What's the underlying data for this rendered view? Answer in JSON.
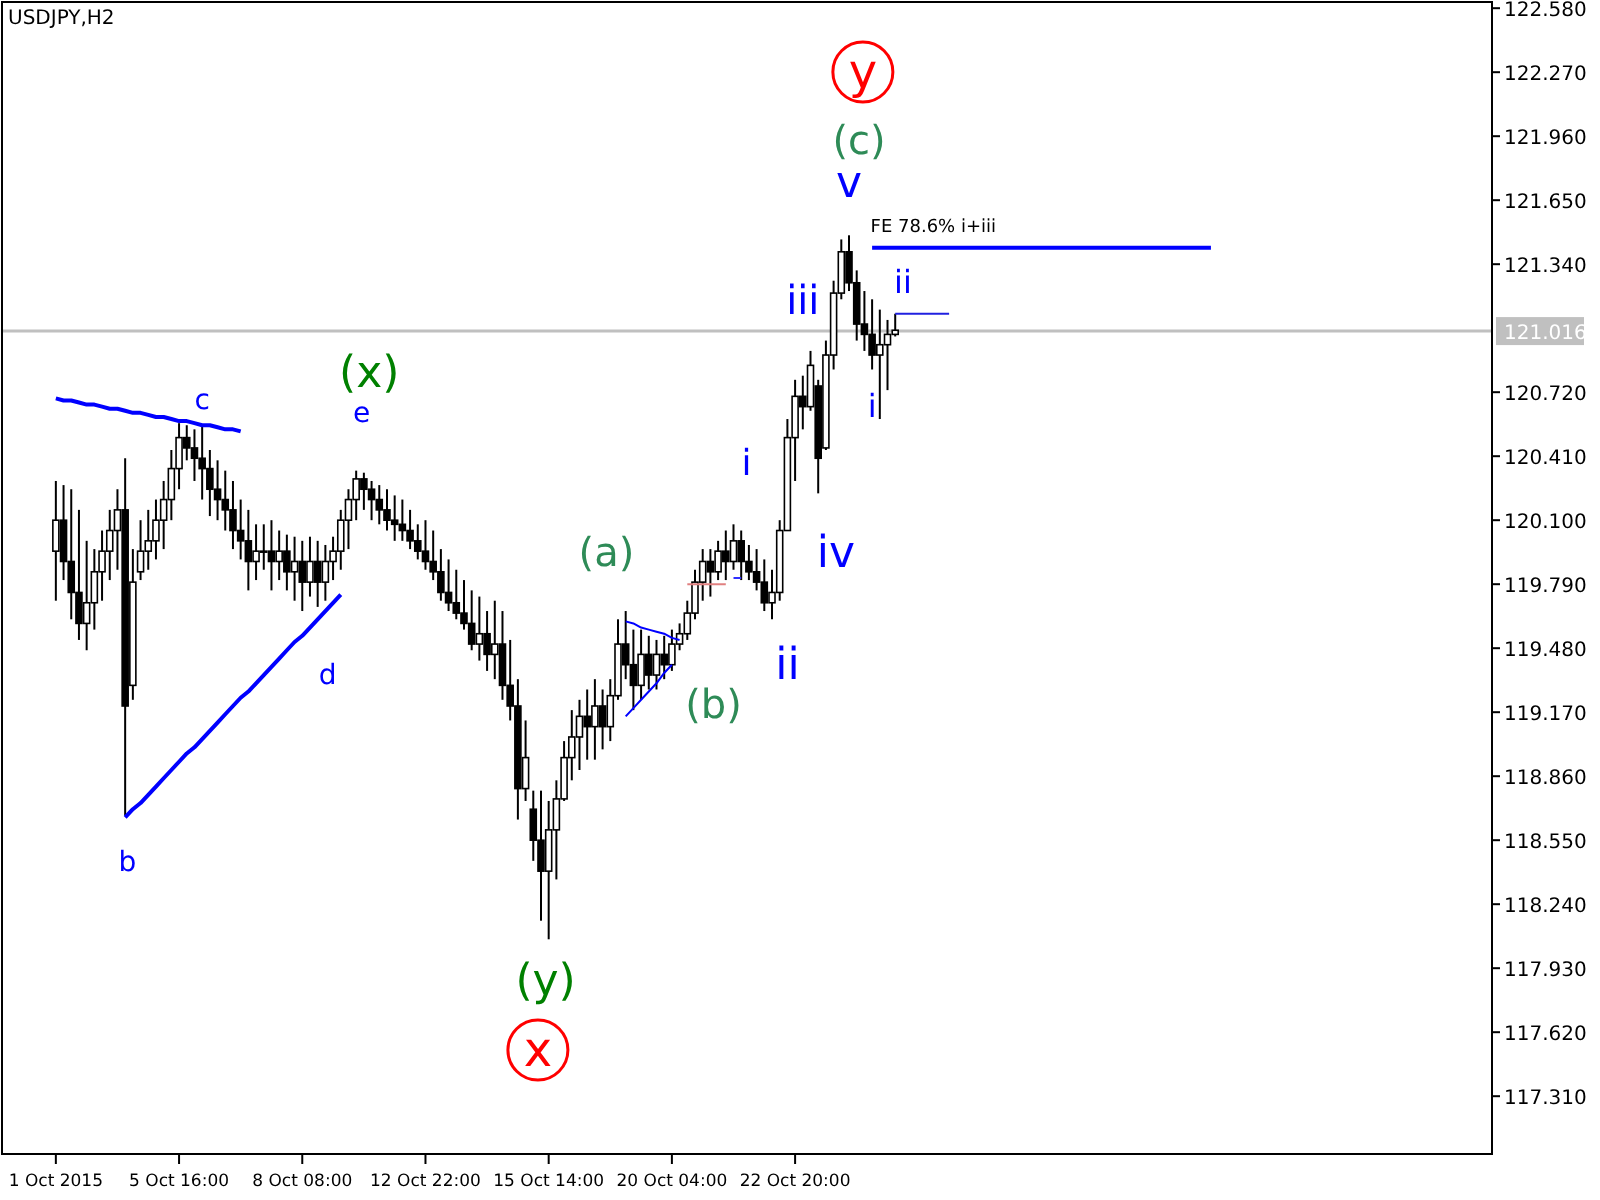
{
  "chart_data": {
    "type": "candlestick",
    "title": "USDJPY,H2",
    "color": "#000000",
    "categories": [
      "1 Oct 2015",
      null,
      null,
      null,
      null,
      null,
      null,
      null,
      null,
      null,
      null,
      null,
      null,
      null,
      null,
      null,
      "5 Oct 16:00",
      null,
      null,
      null,
      null,
      null,
      null,
      null,
      null,
      null,
      null,
      null,
      null,
      null,
      null,
      null,
      "8 Oct 08:00",
      null,
      null,
      null,
      null,
      null,
      null,
      null,
      null,
      null,
      null,
      null,
      null,
      null,
      null,
      null,
      "12 Oct 22:00",
      null,
      null,
      null,
      null,
      null,
      null,
      null,
      null,
      null,
      null,
      null,
      null,
      null,
      null,
      null,
      "15 Oct 14:00",
      null,
      null,
      null,
      null,
      null,
      null,
      null,
      null,
      null,
      null,
      null,
      null,
      null,
      null,
      null,
      "20 Oct 04:00",
      null,
      null,
      null,
      null,
      null,
      null,
      null,
      null,
      null,
      null,
      null,
      null,
      null,
      null,
      null,
      "22 Oct 20:00",
      null,
      null,
      null,
      null,
      null,
      null,
      null,
      null,
      null,
      null,
      null,
      null,
      null,
      null,
      null,
      null,
      null,
      null,
      null,
      null,
      null,
      null,
      null,
      null,
      null,
      null,
      null,
      null,
      null,
      null,
      null,
      null,
      null,
      null,
      null,
      null,
      null,
      null,
      null,
      null,
      null,
      null,
      null,
      null,
      null,
      null,
      null,
      null,
      null,
      null,
      null,
      null,
      null,
      null,
      null,
      null,
      null,
      null,
      null,
      null,
      null,
      null,
      null,
      null,
      null,
      null,
      null,
      null,
      null,
      null,
      null,
      null,
      null,
      null,
      null,
      null,
      null,
      null,
      null,
      null,
      null,
      null,
      null,
      null,
      null,
      null,
      null,
      null,
      null,
      null
    ],
    "ohlc": [
      [
        119.95,
        120.29,
        119.71,
        120.1
      ],
      [
        120.1,
        120.27,
        119.81,
        119.9
      ],
      [
        119.9,
        120.25,
        119.62,
        119.75
      ],
      [
        119.75,
        120.15,
        119.52,
        119.6
      ],
      [
        119.6,
        120.0,
        119.47,
        119.7
      ],
      [
        119.7,
        119.96,
        119.57,
        119.85
      ],
      [
        119.85,
        120.05,
        119.71,
        119.95
      ],
      [
        119.95,
        120.15,
        119.81,
        120.05
      ],
      [
        120.05,
        120.25,
        119.86,
        120.15
      ],
      [
        120.15,
        120.4,
        118.67,
        119.2
      ],
      [
        119.3,
        119.96,
        119.23,
        119.8
      ],
      [
        119.85,
        120.1,
        119.81,
        119.95
      ],
      [
        119.95,
        120.15,
        119.86,
        120.0
      ],
      [
        120.0,
        120.2,
        119.91,
        120.1
      ],
      [
        120.1,
        120.29,
        119.96,
        120.2
      ],
      [
        120.2,
        120.44,
        120.1,
        120.35
      ],
      [
        120.35,
        120.57,
        120.25,
        120.5
      ],
      [
        120.5,
        120.56,
        120.39,
        120.45
      ],
      [
        120.45,
        120.54,
        120.29,
        120.4
      ],
      [
        120.4,
        120.56,
        120.2,
        120.35
      ],
      [
        120.35,
        120.44,
        120.12,
        120.25
      ],
      [
        120.25,
        120.39,
        120.1,
        120.2
      ],
      [
        120.2,
        120.34,
        120.05,
        120.15
      ],
      [
        120.15,
        120.29,
        119.96,
        120.05
      ],
      [
        120.05,
        120.2,
        119.91,
        120.0
      ],
      [
        120.0,
        120.15,
        119.76,
        119.9
      ],
      [
        119.9,
        120.08,
        119.81,
        119.95
      ],
      [
        119.95,
        120.08,
        119.86,
        119.95
      ],
      [
        119.95,
        120.1,
        119.76,
        119.9
      ],
      [
        119.9,
        120.05,
        119.81,
        119.95
      ],
      [
        119.95,
        120.03,
        119.76,
        119.85
      ],
      [
        119.85,
        120.02,
        119.71,
        119.9
      ],
      [
        119.9,
        120.0,
        119.66,
        119.8
      ],
      [
        119.8,
        120.02,
        119.73,
        119.9
      ],
      [
        119.9,
        120.0,
        119.68,
        119.8
      ],
      [
        119.8,
        119.98,
        119.71,
        119.9
      ],
      [
        119.9,
        120.02,
        119.81,
        119.95
      ],
      [
        119.95,
        120.15,
        119.86,
        120.1
      ],
      [
        120.1,
        120.25,
        119.96,
        120.2
      ],
      [
        120.2,
        120.34,
        120.1,
        120.3
      ],
      [
        120.3,
        120.33,
        120.15,
        120.25
      ],
      [
        120.25,
        120.29,
        120.1,
        120.2
      ],
      [
        120.2,
        120.27,
        120.08,
        120.15
      ],
      [
        120.15,
        120.25,
        120.05,
        120.1
      ],
      [
        120.1,
        120.22,
        120.0,
        120.08
      ],
      [
        120.08,
        120.2,
        120.0,
        120.05
      ],
      [
        120.05,
        120.15,
        119.96,
        120.0
      ],
      [
        120.0,
        120.08,
        119.91,
        119.95
      ],
      [
        119.95,
        120.1,
        119.86,
        119.9
      ],
      [
        119.9,
        120.05,
        119.81,
        119.85
      ],
      [
        119.85,
        119.96,
        119.71,
        119.75
      ],
      [
        119.75,
        119.91,
        119.66,
        119.7
      ],
      [
        119.7,
        119.86,
        119.62,
        119.65
      ],
      [
        119.65,
        119.81,
        119.57,
        119.6
      ],
      [
        119.6,
        119.76,
        119.47,
        119.5
      ],
      [
        119.5,
        119.73,
        119.42,
        119.55
      ],
      [
        119.55,
        119.66,
        119.37,
        119.45
      ],
      [
        119.45,
        119.71,
        119.33,
        119.5
      ],
      [
        119.5,
        119.66,
        119.23,
        119.3
      ],
      [
        119.3,
        119.52,
        119.13,
        119.2
      ],
      [
        119.2,
        119.33,
        118.65,
        118.8
      ],
      [
        118.8,
        119.13,
        118.74,
        118.95
      ],
      [
        118.7,
        118.79,
        118.45,
        118.55
      ],
      [
        118.55,
        118.79,
        118.16,
        118.4
      ],
      [
        118.4,
        118.74,
        118.07,
        118.6
      ],
      [
        118.6,
        118.84,
        118.36,
        118.75
      ],
      [
        118.75,
        119.03,
        118.74,
        118.95
      ],
      [
        118.95,
        119.18,
        118.84,
        119.05
      ],
      [
        119.05,
        119.23,
        118.89,
        119.15
      ],
      [
        119.15,
        119.28,
        118.94,
        119.1
      ],
      [
        119.1,
        119.33,
        118.94,
        119.2
      ],
      [
        119.2,
        119.28,
        118.99,
        119.1
      ],
      [
        119.1,
        119.33,
        119.03,
        119.25
      ],
      [
        119.25,
        119.62,
        119.23,
        119.5
      ],
      [
        119.5,
        119.66,
        119.33,
        119.4
      ],
      [
        119.4,
        119.57,
        119.18,
        119.3
      ],
      [
        119.3,
        119.57,
        119.23,
        119.45
      ],
      [
        119.45,
        119.54,
        119.28,
        119.35
      ],
      [
        119.35,
        119.52,
        119.28,
        119.45
      ],
      [
        119.45,
        119.54,
        119.33,
        119.4
      ],
      [
        119.4,
        119.57,
        119.37,
        119.5
      ],
      [
        119.5,
        119.6,
        119.47,
        119.55
      ],
      [
        119.55,
        119.71,
        119.52,
        119.65
      ],
      [
        119.65,
        119.86,
        119.62,
        119.8
      ],
      [
        119.8,
        119.96,
        119.71,
        119.9
      ],
      [
        119.9,
        119.96,
        119.73,
        119.85
      ],
      [
        119.85,
        120.0,
        119.81,
        119.95
      ],
      [
        119.95,
        120.05,
        119.81,
        119.9
      ],
      [
        119.9,
        120.08,
        119.86,
        120.0
      ],
      [
        120.0,
        120.05,
        119.81,
        119.9
      ],
      [
        119.9,
        119.98,
        119.81,
        119.85
      ],
      [
        119.85,
        119.96,
        119.76,
        119.8
      ],
      [
        119.8,
        119.91,
        119.66,
        119.7
      ],
      [
        119.7,
        119.86,
        119.62,
        119.75
      ],
      [
        119.75,
        120.1,
        119.71,
        120.05
      ],
      [
        120.05,
        120.59,
        120.05,
        120.5
      ],
      [
        120.5,
        120.78,
        120.29,
        120.7
      ],
      [
        120.7,
        120.8,
        120.54,
        120.65
      ],
      [
        120.65,
        120.92,
        120.63,
        120.85
      ],
      [
        120.75,
        120.78,
        120.23,
        120.4
      ],
      [
        120.45,
        120.97,
        120.44,
        120.9
      ],
      [
        120.9,
        121.26,
        120.83,
        121.2
      ],
      [
        121.2,
        121.46,
        121.17,
        121.4
      ],
      [
        121.4,
        121.48,
        121.21,
        121.25
      ],
      [
        121.25,
        121.31,
        120.97,
        121.05
      ],
      [
        121.05,
        121.21,
        120.92,
        121.0
      ],
      [
        121.0,
        121.17,
        120.83,
        120.9
      ],
      [
        120.9,
        121.12,
        120.59,
        120.95
      ],
      [
        120.95,
        121.07,
        120.73,
        121.0
      ],
      [
        121.0,
        121.1,
        120.99,
        121.02
      ],
      null,
      null,
      null,
      null,
      null,
      null,
      null,
      null,
      null,
      null,
      null,
      null,
      null,
      null,
      null,
      null,
      null,
      null,
      null,
      null,
      null,
      null,
      null,
      null,
      null,
      null,
      null,
      null,
      null,
      null,
      null,
      null,
      null,
      null,
      null,
      null,
      null,
      null,
      null,
      null,
      null,
      null,
      null,
      null,
      null,
      null,
      null,
      null,
      null,
      null,
      null,
      null,
      null,
      null,
      null,
      null,
      null,
      null,
      null,
      null,
      null,
      null,
      null,
      null,
      null,
      null,
      null,
      null,
      null,
      null,
      null,
      null,
      null,
      null,
      null,
      null,
      null
    ],
    "series": [
      {
        "type": "line",
        "color": "#0000ff",
        "values": [
          120.69,
          120.68,
          120.68,
          120.67,
          120.66,
          120.66,
          120.65,
          120.64,
          120.64,
          120.63,
          120.62,
          120.62,
          120.61,
          120.6,
          120.6,
          120.59,
          120.58,
          120.58,
          120.57,
          120.56,
          120.56,
          120.55,
          120.54,
          120.54,
          120.53,
          null,
          null,
          null,
          null,
          null,
          null,
          null,
          null,
          null,
          null,
          null,
          null,
          null,
          null,
          null,
          null,
          null,
          null,
          null,
          null,
          null,
          null,
          null,
          null,
          null,
          null,
          null,
          null,
          null,
          null,
          null,
          null,
          null,
          null,
          null,
          null,
          null,
          null,
          null,
          null,
          null,
          null,
          null,
          null,
          null,
          null,
          null,
          null,
          null,
          null,
          null,
          null,
          null,
          null,
          null,
          null,
          null,
          null,
          null,
          null,
          null,
          null,
          null,
          null,
          null,
          null,
          null,
          null,
          null,
          null,
          null,
          null,
          null,
          null,
          null,
          null,
          null,
          null,
          null,
          null,
          null,
          null,
          null,
          null,
          null,
          null,
          null,
          null,
          null,
          null,
          null,
          null,
          null,
          null,
          null,
          null,
          null,
          null,
          null,
          null,
          null,
          null,
          null,
          null,
          null,
          null,
          null,
          null,
          null,
          null,
          null,
          null,
          null,
          null,
          null,
          null,
          null,
          null,
          null,
          null,
          null,
          null,
          null,
          null,
          null,
          null,
          null,
          null,
          null,
          null,
          null,
          null,
          null,
          null,
          null,
          null,
          null,
          null,
          null,
          null,
          null,
          null,
          null,
          null,
          null,
          null,
          null,
          null,
          null,
          null,
          null,
          null,
          null,
          null,
          null,
          null,
          null,
          null,
          null,
          null,
          null,
          null
        ]
      },
      {
        "type": "line",
        "color": "#0000ff",
        "values": [
          null,
          null,
          null,
          null,
          null,
          null,
          null,
          null,
          null,
          118.66,
          118.7,
          118.73,
          118.77,
          118.81,
          118.85,
          118.89,
          118.93,
          118.97,
          119.0,
          119.04,
          119.08,
          119.12,
          119.16,
          119.2,
          119.24,
          119.27,
          119.31,
          119.35,
          119.39,
          119.43,
          119.47,
          119.51,
          119.54,
          119.58,
          119.62,
          119.66,
          119.7,
          119.74,
          null,
          null,
          null,
          null,
          null,
          null,
          null,
          null,
          null,
          null,
          null,
          null,
          null,
          null,
          null,
          null,
          null,
          null,
          null,
          null,
          null,
          null,
          null,
          null,
          null,
          null,
          null,
          null,
          null,
          null,
          null,
          null,
          null,
          null,
          null,
          null,
          null,
          null,
          null,
          null,
          null,
          null,
          null,
          null,
          null,
          null,
          null,
          null,
          null,
          null,
          null,
          null,
          null,
          null,
          null,
          null,
          null,
          null,
          null,
          null,
          null,
          null,
          null,
          null,
          null,
          null,
          null,
          null,
          null,
          null,
          null,
          null,
          null,
          null,
          null,
          null,
          null,
          null,
          null,
          null,
          null,
          null,
          null,
          null,
          null,
          null,
          null,
          null,
          null,
          null,
          null,
          null,
          null,
          null,
          null,
          null,
          null,
          null,
          null,
          null,
          null,
          null,
          null,
          null,
          null,
          null,
          null,
          null,
          null,
          null,
          null,
          null,
          null,
          null,
          null,
          null,
          null,
          null,
          null,
          null,
          null,
          null,
          null,
          null,
          null,
          null,
          null,
          null,
          null,
          null,
          null,
          null,
          null,
          null,
          null,
          null,
          null,
          null,
          null,
          null,
          null,
          null,
          null,
          null,
          null,
          null,
          null,
          null,
          null
        ]
      },
      {
        "type": "line",
        "color": "#0000ff",
        "values": [
          null,
          null,
          null,
          null,
          null,
          null,
          null,
          null,
          null,
          null,
          null,
          null,
          null,
          null,
          null,
          null,
          null,
          null,
          null,
          null,
          null,
          null,
          null,
          null,
          null,
          null,
          null,
          null,
          null,
          null,
          null,
          null,
          null,
          null,
          null,
          null,
          null,
          null,
          null,
          null,
          null,
          null,
          null,
          null,
          null,
          null,
          null,
          null,
          null,
          null,
          null,
          null,
          null,
          null,
          null,
          null,
          null,
          null,
          null,
          null,
          null,
          null,
          null,
          null,
          null,
          null,
          null,
          null,
          null,
          null,
          null,
          null,
          null,
          null,
          119.61,
          119.6,
          119.58,
          119.57,
          119.56,
          119.55,
          119.53,
          119.52,
          null,
          null,
          null,
          null,
          null,
          null,
          null,
          null,
          null,
          null,
          null,
          null,
          null,
          null,
          null,
          null,
          null,
          null,
          null,
          null,
          null,
          null,
          null,
          null,
          null,
          null,
          null,
          null,
          null,
          null,
          null,
          null,
          null,
          null,
          null,
          null,
          null,
          null,
          null,
          null,
          null,
          null,
          null,
          null,
          null,
          null,
          null,
          null,
          null,
          null,
          null,
          null,
          null,
          null,
          null,
          null,
          null,
          null,
          null,
          null,
          null,
          null,
          null,
          null,
          null,
          null,
          null,
          null,
          null,
          null,
          null,
          null,
          null,
          null,
          null,
          null,
          null,
          null,
          null,
          null,
          null,
          null,
          null,
          null,
          null,
          null,
          null,
          null,
          null,
          null,
          null,
          null,
          null,
          null,
          null,
          null,
          null,
          null,
          null,
          null,
          null,
          null,
          null,
          null,
          null
        ]
      },
      {
        "type": "line",
        "color": "#0000ff",
        "values": [
          null,
          null,
          null,
          null,
          null,
          null,
          null,
          null,
          null,
          null,
          null,
          null,
          null,
          null,
          null,
          null,
          null,
          null,
          null,
          null,
          null,
          null,
          null,
          null,
          null,
          null,
          null,
          null,
          null,
          null,
          null,
          null,
          null,
          null,
          null,
          null,
          null,
          null,
          null,
          null,
          null,
          null,
          null,
          null,
          null,
          null,
          null,
          null,
          null,
          null,
          null,
          null,
          null,
          null,
          null,
          null,
          null,
          null,
          null,
          null,
          null,
          null,
          null,
          null,
          null,
          null,
          null,
          null,
          null,
          null,
          null,
          null,
          null,
          null,
          119.15,
          119.19,
          119.23,
          119.27,
          119.31,
          119.36,
          119.4,
          null,
          null,
          null,
          null,
          null,
          null,
          null,
          null,
          null,
          null,
          null,
          null,
          null,
          null,
          null,
          null,
          null,
          null,
          null,
          null,
          null,
          null,
          null,
          null,
          null,
          null,
          null,
          null,
          null,
          null,
          null,
          null,
          null,
          null,
          null,
          null,
          null,
          null,
          null,
          null,
          null,
          null,
          null,
          null,
          null,
          null,
          null,
          null,
          null,
          null,
          null,
          null,
          null,
          null,
          null,
          null,
          null,
          null,
          null,
          null,
          null,
          null,
          null,
          null,
          null,
          null,
          null,
          null,
          null,
          null,
          null,
          null,
          null,
          null,
          null,
          null,
          null,
          null,
          null,
          null,
          null,
          null,
          null,
          null,
          null,
          null,
          null,
          null,
          null,
          null,
          null,
          null,
          null,
          null,
          null,
          null,
          null,
          null,
          null,
          null,
          null,
          null,
          null,
          null,
          null,
          null
        ]
      },
      {
        "type": "line",
        "color": "#e08080",
        "values": [
          null,
          null,
          null,
          null,
          null,
          null,
          null,
          null,
          null,
          null,
          null,
          null,
          null,
          null,
          null,
          null,
          null,
          null,
          null,
          null,
          null,
          null,
          null,
          null,
          null,
          null,
          null,
          null,
          null,
          null,
          null,
          null,
          null,
          null,
          null,
          null,
          null,
          null,
          null,
          null,
          null,
          null,
          null,
          null,
          null,
          null,
          null,
          null,
          null,
          null,
          null,
          null,
          null,
          null,
          null,
          null,
          null,
          null,
          null,
          null,
          null,
          null,
          null,
          null,
          null,
          null,
          null,
          null,
          null,
          null,
          null,
          null,
          null,
          null,
          null,
          null,
          null,
          null,
          null,
          null,
          null,
          null,
          119.79,
          119.79,
          119.79,
          119.79,
          119.79,
          119.79,
          null,
          null,
          null,
          null,
          null,
          null,
          null,
          null,
          null,
          null,
          null,
          null,
          null,
          null,
          null,
          null,
          null,
          null,
          null,
          null,
          null,
          null,
          null,
          null,
          null,
          null,
          null,
          null,
          null,
          null,
          null,
          null,
          null,
          null,
          null,
          null,
          null,
          null,
          null,
          null,
          null,
          null,
          null,
          null,
          null,
          null,
          null,
          null,
          null,
          null,
          null,
          null,
          null,
          null,
          null,
          null,
          null,
          null,
          null,
          null,
          null,
          null,
          null,
          null,
          null,
          null,
          null,
          null,
          null,
          null,
          null,
          null,
          null,
          null,
          null,
          null,
          null,
          null,
          null,
          null,
          null,
          null,
          null,
          null,
          null,
          null,
          null,
          null,
          null,
          null,
          null,
          null,
          null,
          null,
          null,
          null,
          null,
          null,
          null
        ]
      },
      {
        "type": "line",
        "color": "#3030ff",
        "values": [
          null,
          null,
          null,
          null,
          null,
          null,
          null,
          null,
          null,
          null,
          null,
          null,
          null,
          null,
          null,
          null,
          null,
          null,
          null,
          null,
          null,
          null,
          null,
          null,
          null,
          null,
          null,
          null,
          null,
          null,
          null,
          null,
          null,
          null,
          null,
          null,
          null,
          null,
          null,
          null,
          null,
          null,
          null,
          null,
          null,
          null,
          null,
          null,
          null,
          null,
          null,
          null,
          null,
          null,
          null,
          null,
          null,
          null,
          null,
          null,
          null,
          null,
          null,
          null,
          null,
          null,
          null,
          null,
          null,
          null,
          null,
          null,
          null,
          null,
          null,
          null,
          null,
          null,
          null,
          null,
          null,
          null,
          null,
          null,
          null,
          null,
          null,
          null,
          119.82,
          119.82,
          null,
          null,
          null,
          null,
          null,
          null,
          null,
          null,
          null,
          null,
          null,
          null,
          null,
          null,
          null,
          null,
          null,
          null,
          null,
          null,
          null,
          null,
          null,
          null,
          null,
          null,
          null,
          null,
          null,
          null,
          null,
          null,
          null,
          null,
          null,
          null,
          null,
          null,
          null,
          null,
          null,
          null,
          null,
          null,
          null,
          null,
          null,
          null,
          null,
          null,
          null,
          null,
          null,
          null,
          null,
          null,
          null,
          null,
          null,
          null,
          null,
          null,
          null,
          null,
          null,
          null,
          null,
          null,
          null,
          null,
          null,
          null,
          null,
          null,
          null,
          null,
          null,
          null,
          null,
          null,
          null,
          null,
          null,
          null,
          null,
          null,
          null,
          null,
          null,
          null,
          null,
          null,
          null,
          null,
          null,
          null,
          null
        ]
      },
      {
        "type": "line",
        "color": "#0000ff",
        "values": [
          null,
          null,
          null,
          null,
          null,
          null,
          null,
          null,
          null,
          null,
          null,
          null,
          null,
          null,
          null,
          null,
          null,
          null,
          null,
          null,
          null,
          null,
          null,
          null,
          null,
          null,
          null,
          null,
          null,
          null,
          null,
          null,
          null,
          null,
          null,
          null,
          null,
          null,
          null,
          null,
          null,
          null,
          null,
          null,
          null,
          null,
          null,
          null,
          null,
          null,
          null,
          null,
          null,
          null,
          null,
          null,
          null,
          null,
          null,
          null,
          null,
          null,
          null,
          null,
          null,
          null,
          null,
          null,
          null,
          null,
          null,
          null,
          null,
          null,
          null,
          null,
          null,
          null,
          null,
          null,
          null,
          null,
          null,
          null,
          null,
          null,
          null,
          null,
          null,
          null,
          null,
          null,
          null,
          null,
          null,
          null,
          null,
          null,
          null,
          null,
          null,
          null,
          null,
          null,
          null,
          null,
          121.42,
          121.42,
          121.42,
          121.42,
          121.42,
          121.42,
          121.42,
          121.42,
          121.42,
          121.42,
          121.42,
          121.42,
          121.42,
          121.42,
          121.42,
          121.42,
          121.42,
          121.42,
          121.42,
          121.42,
          121.42,
          121.42,
          121.42,
          121.42,
          121.42,
          121.42,
          121.42,
          121.42,
          121.42,
          121.42,
          121.42,
          121.42,
          121.42,
          121.42,
          121.42,
          121.42,
          121.42,
          121.42,
          121.42,
          121.42,
          121.42,
          121.42,
          121.42,
          121.42,
          121.42,
          null,
          null,
          null,
          null,
          null,
          null,
          null,
          null,
          null,
          null,
          null,
          null,
          null,
          null,
          null,
          null,
          null,
          null,
          null,
          null,
          null,
          null,
          null,
          null,
          null,
          null,
          null,
          null,
          null,
          null,
          null,
          null,
          null,
          null,
          null,
          null
        ]
      },
      {
        "type": "line",
        "color": "#2020e0",
        "values": [
          null,
          null,
          null,
          null,
          null,
          null,
          null,
          null,
          null,
          null,
          null,
          null,
          null,
          null,
          null,
          null,
          null,
          null,
          null,
          null,
          null,
          null,
          null,
          null,
          null,
          null,
          null,
          null,
          null,
          null,
          null,
          null,
          null,
          null,
          null,
          null,
          null,
          null,
          null,
          null,
          null,
          null,
          null,
          null,
          null,
          null,
          null,
          null,
          null,
          null,
          null,
          null,
          null,
          null,
          null,
          null,
          null,
          null,
          null,
          null,
          null,
          null,
          null,
          null,
          null,
          null,
          null,
          null,
          null,
          null,
          null,
          null,
          null,
          null,
          null,
          null,
          null,
          null,
          null,
          null,
          null,
          null,
          null,
          null,
          null,
          null,
          null,
          null,
          null,
          null,
          null,
          null,
          null,
          null,
          null,
          null,
          null,
          null,
          null,
          null,
          null,
          null,
          null,
          null,
          null,
          null,
          null,
          null,
          null,
          121.1,
          121.1,
          121.1,
          121.1,
          121.1,
          121.1,
          121.1,
          121.1,
          null,
          null,
          null,
          null,
          null,
          null,
          null,
          null,
          null,
          null,
          null,
          null,
          null,
          null,
          null,
          null,
          null,
          null,
          null,
          null,
          null,
          null,
          null,
          null,
          null,
          null,
          null,
          null,
          null,
          null,
          null,
          null,
          null,
          null,
          null,
          null,
          null,
          null,
          null,
          null,
          null,
          null,
          null,
          null,
          null,
          null,
          null,
          null,
          null,
          null,
          null,
          null,
          null,
          null,
          null,
          null,
          null,
          null,
          null,
          null,
          null,
          null,
          null,
          null,
          null,
          null,
          null,
          null,
          null,
          null
        ]
      }
    ],
    "ylim": [
      117.03,
      122.61
    ],
    "yticks": [
      {
        "value": 122.58,
        "label": "122.580"
      },
      {
        "value": 122.27,
        "label": "122.270"
      },
      {
        "value": 121.96,
        "label": "121.960"
      },
      {
        "value": 121.65,
        "label": "121.650"
      },
      {
        "value": 121.34,
        "label": "121.340"
      },
      {
        "value": 120.72,
        "label": "120.720"
      },
      {
        "value": 120.41,
        "label": "120.410"
      },
      {
        "value": 120.1,
        "label": "120.100"
      },
      {
        "value": 119.79,
        "label": "119.790"
      },
      {
        "value": 119.48,
        "label": "119.480"
      },
      {
        "value": 119.17,
        "label": "119.170"
      },
      {
        "value": 118.86,
        "label": "118.860"
      },
      {
        "value": 118.55,
        "label": "118.550"
      },
      {
        "value": 118.24,
        "label": "118.240"
      },
      {
        "value": 117.93,
        "label": "117.930"
      },
      {
        "value": 117.62,
        "label": "117.620"
      },
      {
        "value": 117.31,
        "label": "117.310"
      }
    ],
    "ref_lines": [
      {
        "axis": "y",
        "value": 121.016,
        "label": "121.016",
        "color": "#c0c0c0"
      }
    ],
    "annotations": [
      {
        "text": "c",
        "y": 120.56
      },
      {
        "text": "b",
        "y": 118.67
      },
      {
        "text": "d",
        "y": 119.75
      },
      "e",
      "(x)",
      "(a)",
      "(b)",
      "(y)",
      "x",
      "v",
      "(c)",
      "y",
      "iii",
      "iv",
      "ii",
      "i",
      {
        "text": "ii",
        "y": 121.1
      },
      "i",
      "FE 78.6% i+iii"
    ]
  }
}
